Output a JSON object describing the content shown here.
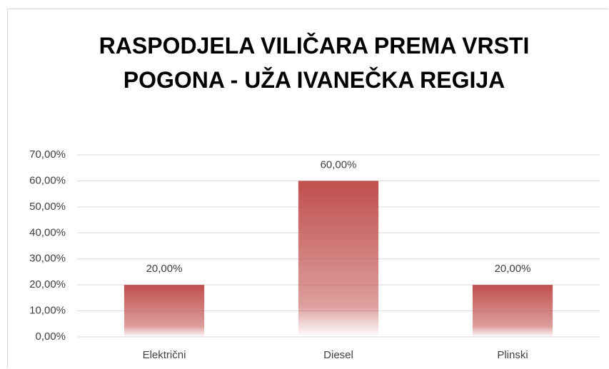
{
  "chart_data": {
    "type": "bar",
    "title": "RASPODJELA VILIČARA PREMA VRSTI POGONA - UŽA IVANEČKA REGIJA",
    "categories": [
      "Električni",
      "Diesel",
      "Plinski"
    ],
    "values": [
      20,
      60,
      20
    ],
    "value_labels": [
      "20,00%",
      "60,00%",
      "20,00%"
    ],
    "color": "#c0504d",
    "ylim": [
      0,
      70
    ],
    "yticks": [
      {
        "value": 0,
        "label": "0,00%"
      },
      {
        "value": 10,
        "label": "10,00%"
      },
      {
        "value": 20,
        "label": "20,00%"
      },
      {
        "value": 30,
        "label": "30,00%"
      },
      {
        "value": 40,
        "label": "40,00%"
      },
      {
        "value": 50,
        "label": "50,00%"
      },
      {
        "value": 60,
        "label": "60,00%"
      },
      {
        "value": 70,
        "label": "70,00%"
      }
    ],
    "grid": true
  }
}
